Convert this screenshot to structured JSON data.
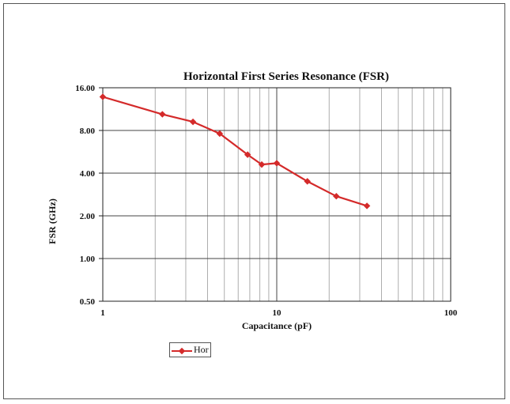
{
  "chart_data": {
    "type": "line",
    "title": "Horizontal First Series Resonance (FSR)",
    "xlabel": "Capacitance (pF)",
    "ylabel": "FSR (GHz)",
    "x_scale": "log",
    "y_scale": "log",
    "xlim": [
      1,
      100
    ],
    "ylim": [
      0.5,
      16
    ],
    "x_tick_labels": [
      "1",
      "10",
      "100"
    ],
    "y_tick_labels": [
      "16.00",
      "8.00",
      "4.00",
      "2.00",
      "1.00",
      "0.50"
    ],
    "y_tick_values": [
      16,
      8,
      4,
      2,
      1,
      0.5
    ],
    "grid": true,
    "legend_position": "bottom-left",
    "colors": {
      "series": "#d42a2a",
      "grid": "#999999",
      "axis": "#222222"
    },
    "series": [
      {
        "name": "Hor",
        "x": [
          1.0,
          2.2,
          3.3,
          4.7,
          6.8,
          8.2,
          10.0,
          15.0,
          22.0,
          33.0
        ],
        "y": [
          13.8,
          10.4,
          9.2,
          7.6,
          5.4,
          4.6,
          4.7,
          3.5,
          2.75,
          2.35
        ]
      }
    ]
  },
  "legend": {
    "items": [
      {
        "label": "Hor"
      }
    ]
  }
}
